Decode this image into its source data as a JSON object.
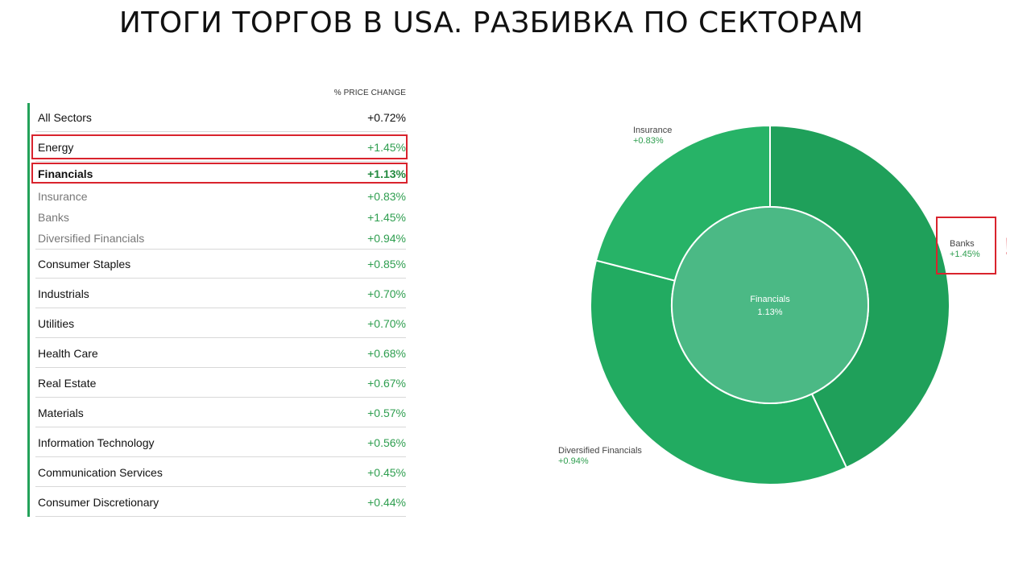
{
  "slide": {
    "title": "ИТОГИ ТОРГОВ В USA. РАЗБИВКА ПО СЕКТОРАМ"
  },
  "table": {
    "column_header": "% PRICE CHANGE",
    "rows": [
      {
        "label": "All Sectors",
        "value": "+0.72%",
        "kind": "first"
      },
      {
        "label": "Energy",
        "value": "+1.45%",
        "kind": "main",
        "highlighted": true
      },
      {
        "label": "Financials",
        "value": "+1.13%",
        "kind": "bold",
        "highlighted": true
      },
      {
        "label": "Insurance",
        "value": "+0.83%",
        "kind": "sub"
      },
      {
        "label": "Banks",
        "value": "+1.45%",
        "kind": "sub"
      },
      {
        "label": "Diversified Financials",
        "value": "+0.94%",
        "kind": "sub-last"
      },
      {
        "label": "Consumer Staples",
        "value": "+0.85%",
        "kind": "main"
      },
      {
        "label": "Industrials",
        "value": "+0.70%",
        "kind": "main"
      },
      {
        "label": "Utilities",
        "value": "+0.70%",
        "kind": "main"
      },
      {
        "label": "Health Care",
        "value": "+0.68%",
        "kind": "main"
      },
      {
        "label": "Real Estate",
        "value": "+0.67%",
        "kind": "main"
      },
      {
        "label": "Materials",
        "value": "+0.57%",
        "kind": "main"
      },
      {
        "label": "Information Technology",
        "value": "+0.56%",
        "kind": "main"
      },
      {
        "label": "Communication Services",
        "value": "+0.45%",
        "kind": "main"
      },
      {
        "label": "Consumer Discretionary",
        "value": "+0.44%",
        "kind": "main"
      }
    ]
  },
  "colors": {
    "accent_green": "#23a25a",
    "positive_text": "#2e9e4f",
    "highlight_red": "#d9232d",
    "slice_banks": "#1fa05a",
    "slice_diversified": "#22ab61",
    "slice_insurance": "#27b367",
    "center": "#4bb985"
  },
  "chart_data": {
    "type": "pie",
    "title": "",
    "center": {
      "label": "Financials",
      "value": "1.13%"
    },
    "slices": [
      {
        "name": "Banks",
        "label": "+1.45%",
        "share": 0.43
      },
      {
        "name": "Diversified Financials",
        "label": "+0.94%",
        "share": 0.36
      },
      {
        "name": "Insurance",
        "label": "+0.83%",
        "share": 0.21
      }
    ],
    "annotation": "!"
  }
}
